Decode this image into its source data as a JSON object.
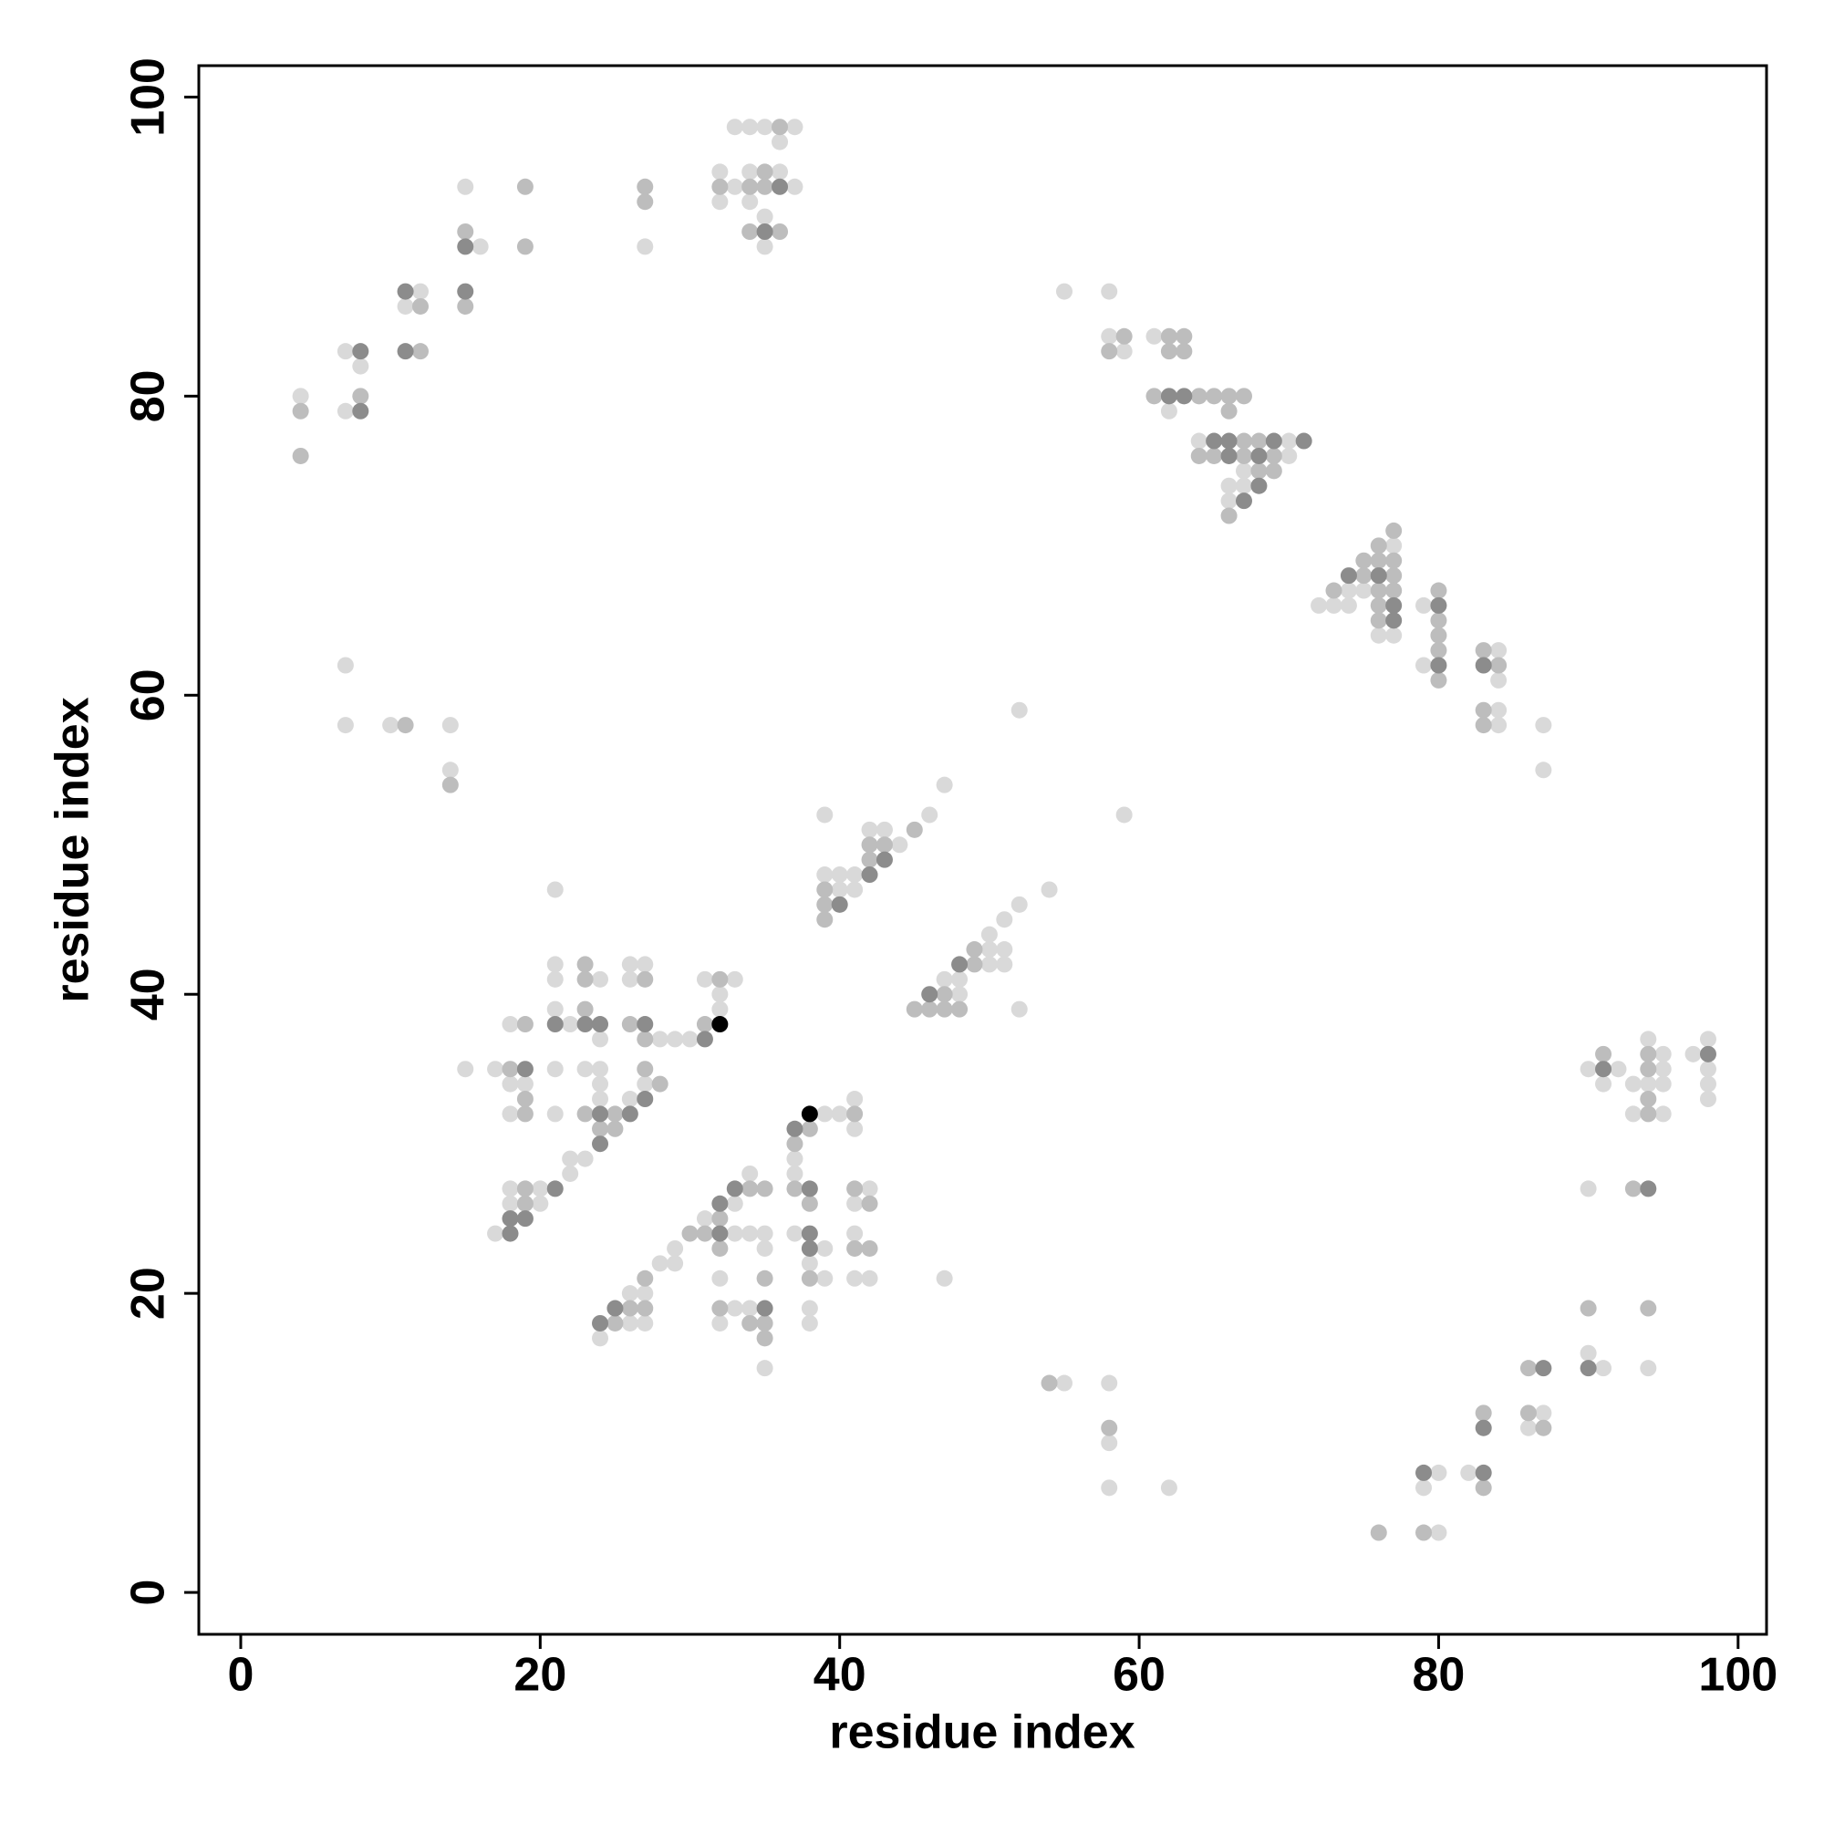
{
  "chart_data": {
    "type": "scatter",
    "xlabel": "residue index",
    "ylabel": "residue index",
    "xlim": [
      -2.8,
      101.9
    ],
    "ylim": [
      -2.8,
      102.1
    ],
    "xticks": [
      0,
      20,
      40,
      60,
      80,
      100
    ],
    "yticks": [
      0,
      20,
      40,
      60,
      80,
      100
    ],
    "series": [
      {
        "color": "#d9d9d9",
        "x": [
          4,
          7,
          8,
          7,
          12,
          11,
          15,
          16,
          27,
          32,
          32,
          33,
          34,
          35,
          37,
          36,
          33,
          34,
          36,
          37,
          34,
          35,
          35,
          7,
          7,
          10,
          14,
          14,
          55,
          58,
          58,
          59,
          61,
          62,
          64,
          70,
          70,
          67,
          66,
          67,
          66,
          72,
          73,
          74,
          74,
          75,
          76,
          77,
          77,
          79,
          79,
          84,
          84,
          84,
          84,
          87,
          87,
          52,
          59,
          47,
          46,
          39,
          42,
          43,
          44,
          39,
          40,
          41,
          40,
          41,
          54,
          52,
          51,
          50,
          50,
          51,
          50,
          51,
          47,
          48,
          48,
          52,
          21,
          21,
          26,
          27,
          21,
          24,
          26,
          31,
          33,
          32,
          21,
          32,
          18,
          22,
          24,
          28,
          29,
          30,
          15,
          17,
          21,
          23,
          24,
          18,
          19,
          24,
          27,
          24,
          26,
          18,
          21,
          22,
          23,
          22,
          18,
          20,
          18,
          20,
          17,
          39,
          40,
          41,
          41,
          37,
          37,
          34,
          42,
          33,
          41,
          31,
          33,
          34,
          35,
          37,
          41,
          29,
          35,
          39,
          28,
          29,
          38,
          32,
          39,
          41,
          42,
          47,
          26,
          27,
          33,
          34,
          38,
          26,
          27,
          32,
          38,
          24,
          35,
          55,
          58,
          58,
          58,
          62,
          80,
          80,
          79,
          82,
          87,
          86,
          90,
          91,
          94,
          90,
          90,
          92,
          91,
          93,
          94,
          94,
          93,
          95,
          95,
          95,
          95,
          97,
          98,
          98,
          98,
          98
        ],
        "values": [
          80,
          83,
          82,
          79,
          87,
          86,
          94,
          90,
          90,
          95,
          93,
          98,
          98,
          98,
          98,
          97,
          94,
          95,
          95,
          94,
          93,
          92,
          90,
          62,
          58,
          58,
          58,
          55,
          87,
          87,
          84,
          83,
          84,
          79,
          77,
          77,
          76,
          75,
          74,
          74,
          73,
          66,
          66,
          67,
          66,
          67,
          64,
          70,
          64,
          66,
          62,
          63,
          61,
          59,
          58,
          58,
          55,
          59,
          52,
          54,
          52,
          52,
          51,
          51,
          50,
          48,
          48,
          48,
          47,
          47,
          47,
          46,
          45,
          44,
          43,
          43,
          42,
          42,
          41,
          41,
          40,
          39,
          47,
          42,
          42,
          42,
          41,
          41,
          41,
          41,
          41,
          40,
          39,
          39,
          38,
          38,
          37,
          37,
          37,
          37,
          35,
          35,
          35,
          35,
          35,
          34,
          34,
          34,
          34,
          33,
          33,
          32,
          32,
          29,
          29,
          28,
          27,
          27,
          26,
          26,
          24,
          32,
          32,
          33,
          31,
          29,
          28,
          28,
          27,
          26,
          26,
          25,
          24,
          24,
          24,
          24,
          24,
          23,
          23,
          23,
          22,
          22,
          22,
          21,
          21,
          21,
          21,
          21,
          20,
          20,
          19,
          19,
          19,
          18,
          18,
          18,
          18,
          17,
          15,
          14,
          14,
          10,
          7,
          7,
          4,
          8,
          7,
          8,
          12,
          11,
          16,
          15,
          15,
          27,
          35,
          35,
          34,
          34,
          37,
          34,
          32,
          36,
          35,
          34,
          32,
          36,
          37,
          35,
          34,
          33
        ]
      },
      {
        "color": "#bdbdbd",
        "x": [
          4,
          4,
          8,
          12,
          12,
          15,
          15,
          19,
          19,
          27,
          27,
          32,
          36,
          34,
          35,
          35,
          34,
          36,
          11,
          14,
          59,
          58,
          62,
          63,
          62,
          63,
          61,
          64,
          65,
          66,
          67,
          66,
          67,
          68,
          64,
          65,
          67,
          69,
          68,
          69,
          66,
          73,
          75,
          75,
          76,
          76,
          76,
          76,
          76,
          77,
          77,
          77,
          77,
          80,
          80,
          80,
          80,
          80,
          83,
          84,
          83,
          83,
          42,
          43,
          45,
          42,
          39,
          39,
          39,
          49,
          49,
          47,
          45,
          46,
          47,
          48,
          23,
          23,
          27,
          32,
          23,
          19,
          26,
          27,
          31,
          18,
          27,
          28,
          19,
          19,
          23,
          25,
          24,
          25,
          19,
          19,
          41,
          38,
          37,
          34,
          35,
          37,
          41,
          38,
          42,
          32,
          30,
          31,
          32,
          41,
          42,
          27,
          35,
          38,
          26,
          27,
          32,
          25,
          34,
          35,
          35,
          54,
          58,
          76,
          79,
          83,
          83,
          86,
          87,
          86,
          90,
          94,
          93,
          91,
          94,
          94,
          94,
          94
        ],
        "values": [
          79,
          76,
          80,
          86,
          83,
          91,
          86,
          94,
          90,
          94,
          93,
          94,
          98,
          94,
          95,
          94,
          91,
          91,
          58,
          54,
          84,
          83,
          84,
          84,
          83,
          83,
          80,
          80,
          80,
          80,
          80,
          79,
          77,
          77,
          76,
          76,
          76,
          76,
          75,
          75,
          72,
          67,
          69,
          68,
          70,
          69,
          67,
          66,
          65,
          71,
          69,
          68,
          67,
          67,
          65,
          64,
          63,
          61,
          63,
          62,
          59,
          58,
          50,
          50,
          51,
          49,
          47,
          46,
          45,
          43,
          42,
          40,
          39,
          39,
          39,
          39,
          42,
          41,
          41,
          41,
          39,
          38,
          38,
          37,
          38,
          35,
          35,
          34,
          33,
          32,
          32,
          32,
          31,
          31,
          27,
          26,
          32,
          31,
          30,
          27,
          27,
          27,
          27,
          26,
          26,
          25,
          24,
          24,
          23,
          23,
          23,
          21,
          21,
          21,
          19,
          19,
          19,
          18,
          18,
          18,
          17,
          14,
          11,
          4,
          4,
          7,
          12,
          12,
          11,
          15,
          19,
          19,
          27,
          36,
          36,
          35,
          33,
          32
        ]
      },
      {
        "color": "#8c8c8c",
        "x": [
          8,
          8,
          11,
          11,
          15,
          15,
          36,
          35,
          62,
          63,
          65,
          66,
          69,
          71,
          66,
          68,
          68,
          67,
          74,
          76,
          77,
          77,
          80,
          80,
          83,
          43,
          42,
          40,
          48,
          46,
          21,
          23,
          24,
          27,
          31,
          19,
          27,
          24,
          26,
          24,
          21,
          18,
          19,
          18,
          37,
          33,
          38,
          32,
          32,
          38,
          38,
          25,
          35,
          24,
          79,
          83,
          83,
          87,
          90,
          94,
          91,
          98
        ],
        "values": [
          83,
          79,
          87,
          83,
          90,
          87,
          94,
          91,
          80,
          80,
          77,
          77,
          77,
          77,
          76,
          76,
          74,
          73,
          68,
          68,
          66,
          65,
          66,
          62,
          62,
          49,
          48,
          46,
          42,
          40,
          38,
          38,
          38,
          38,
          37,
          35,
          33,
          32,
          32,
          30,
          27,
          25,
          25,
          24,
          31,
          27,
          27,
          26,
          24,
          24,
          23,
          19,
          19,
          18,
          8,
          8,
          11,
          15,
          15,
          27,
          35,
          36
        ]
      },
      {
        "color": "#000000",
        "x": [
          32,
          38
        ],
        "values": [
          38,
          32
        ]
      }
    ]
  }
}
